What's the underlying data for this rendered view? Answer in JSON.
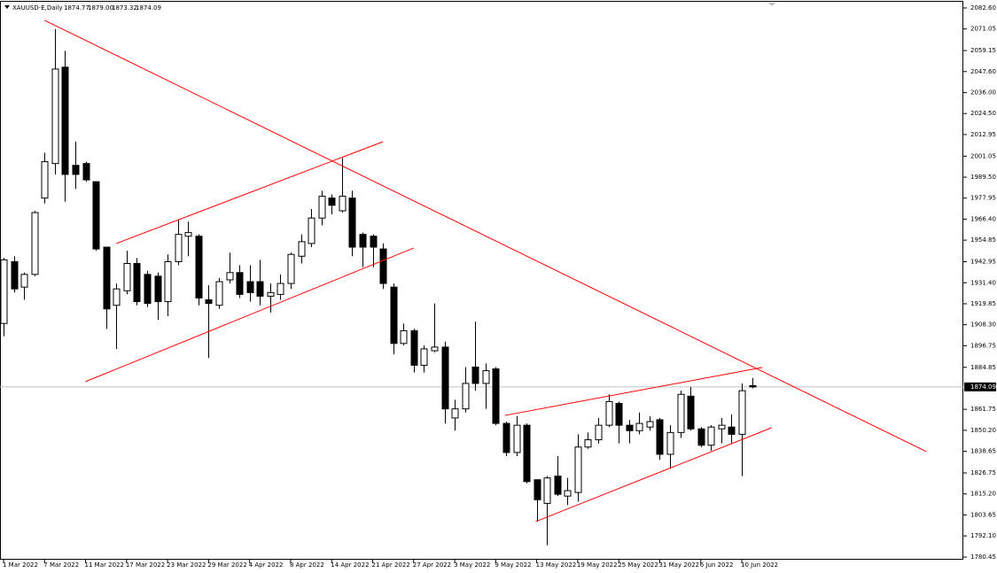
{
  "chart_data": {
    "type": "candlestick",
    "title": "XAUUSD-E,Daily",
    "ohlc_labels": [
      "1874.77",
      "1879.00",
      "1873.32",
      "1874.09"
    ],
    "categories": [
      "1 Mar 2022",
      null,
      null,
      null,
      "7 Mar 2022",
      null,
      null,
      null,
      "11 Mar 2022",
      null,
      null,
      null,
      "17 Mar 2022",
      null,
      null,
      null,
      "23 Mar 2022",
      null,
      null,
      null,
      "29 Mar 2022",
      null,
      null,
      null,
      "4 Apr 2022",
      null,
      null,
      null,
      "8 Apr 2022",
      null,
      null,
      null,
      "14 Apr 2022",
      null,
      null,
      null,
      "21 Apr 2022",
      null,
      null,
      null,
      "27 Apr 2022",
      null,
      null,
      null,
      "3 May 2022",
      null,
      null,
      null,
      "9 May 2022",
      null,
      null,
      null,
      "13 May 2022",
      null,
      null,
      null,
      "19 May 2022",
      null,
      null,
      null,
      "25 May 2022",
      null,
      null,
      null,
      "31 May 2022",
      null,
      null,
      null,
      "6 Jun 2022",
      null,
      null,
      null,
      "10 Jun 2022",
      null
    ],
    "open": [
      1909,
      1943,
      1929,
      1936,
      1978,
      1997,
      2050,
      1996,
      1997,
      1987,
      1951,
      1919,
      1927,
      1942,
      1936,
      1935,
      1921,
      1943,
      1957,
      1957,
      1922,
      1919,
      1933,
      1937,
      1932,
      1932,
      1924,
      1925,
      1931,
      1946,
      1953,
      1967,
      1978,
      1971,
      1978,
      1958,
      1957,
      1950,
      1929,
      1898,
      1905,
      1886,
      1894,
      1896,
      1857,
      1862,
      1885,
      1876,
      1884,
      1854,
      1838,
      1853,
      1823,
      1810,
      1825,
      1814,
      1816,
      1841,
      1845,
      1853,
      1865,
      1853,
      1850,
      1852,
      1856,
      1837,
      1849,
      1869,
      1851,
      1842,
      1851,
      1852,
      1848,
      1874.77
    ],
    "high": [
      1945,
      1946,
      1937,
      1971,
      2003,
      2071,
      2059,
      2009,
      1998,
      1987,
      1951,
      1931,
      1949,
      1945,
      1938,
      1937,
      1947,
      1966,
      1965,
      1958,
      1930,
      1934,
      1948,
      1941,
      1941,
      1944,
      1931,
      1936,
      1948,
      1958,
      1972,
      1982,
      1980,
      2000,
      1982,
      1959,
      1958,
      1953,
      1931,
      1909,
      1906,
      1897,
      1920,
      1899,
      1867,
      1885,
      1910,
      1887,
      1885,
      1855,
      1858,
      1854,
      1823,
      1825,
      1836,
      1824,
      1848,
      1849,
      1857,
      1870,
      1866,
      1856,
      1860,
      1858,
      1857,
      1853,
      1872,
      1874,
      1852,
      1853,
      1857,
      1859,
      1876,
      1879
    ],
    "low": [
      1902,
      1926,
      1922,
      1935,
      1975,
      1991,
      1976,
      1983,
      1987,
      1949,
      1906,
      1895,
      1925,
      1919,
      1918,
      1911,
      1913,
      1941,
      1946,
      1919,
      1890,
      1917,
      1931,
      1923,
      1921,
      1919,
      1915,
      1922,
      1928,
      1942,
      1951,
      1963,
      1969,
      1970,
      1946,
      1940,
      1940,
      1928,
      1892,
      1897,
      1882,
      1882,
      1893,
      1854,
      1850,
      1860,
      1872,
      1862,
      1853,
      1836,
      1836,
      1821,
      1800,
      1787,
      1814,
      1809,
      1811,
      1840,
      1843,
      1852,
      1843,
      1843,
      1848,
      1850,
      1834,
      1829,
      1846,
      1850,
      1841,
      1839,
      1843,
      1843,
      1825,
      1873.32
    ],
    "close": [
      1944,
      1928,
      1936,
      1970,
      1998,
      2049,
      1991,
      1991,
      1988,
      1950,
      1917,
      1928,
      1942,
      1921,
      1920,
      1921,
      1943,
      1958,
      1959,
      1923,
      1920,
      1932,
      1937,
      1925,
      1926,
      1924,
      1926,
      1931,
      1947,
      1954,
      1967,
      1979,
      1974,
      1979,
      1951,
      1951,
      1951,
      1931,
      1898,
      1905,
      1886,
      1895,
      1896,
      1862,
      1862,
      1876,
      1876,
      1883,
      1854,
      1838,
      1853,
      1822,
      1812,
      1824,
      1815,
      1817,
      1841,
      1845,
      1853,
      1866,
      1853,
      1850,
      1854,
      1855,
      1837,
      1849,
      1870,
      1851,
      1842,
      1852,
      1853,
      1848,
      1872,
      1874.09
    ],
    "up_color": "#ffffff",
    "down_color": "#000000",
    "ylim": [
      1779.0,
      2086.0
    ],
    "yticks": [
      {
        "value": 2082.6,
        "label": "2082.60"
      },
      2071.05,
      2059.15,
      {
        "value": 2047.6,
        "label": "2047.60"
      },
      {
        "value": 2036.0,
        "label": "2036.00"
      },
      {
        "value": 2024.5,
        "label": "2024.50"
      },
      2012.95,
      2001.05,
      {
        "value": 1989.5,
        "label": "1989.50"
      },
      1977.95,
      {
        "value": 1966.4,
        "label": "1966.40"
      },
      1954.85,
      1942.95,
      {
        "value": 1931.4,
        "label": "1931.40"
      },
      1919.85,
      {
        "value": 1908.3,
        "label": "1908.30"
      },
      1896.75,
      1884.85,
      1861.75,
      {
        "value": 1850.2,
        "label": "1850.20"
      },
      1838.65,
      1826.75,
      {
        "value": 1815.2,
        "label": "1815.20"
      },
      1803.65,
      {
        "value": 1792.1,
        "label": "1792.10"
      },
      1780.45
    ],
    "current_price": {
      "value": 1874.09,
      "label": "1874.09"
    },
    "trendline_color": "#ff0000",
    "trendlines": [
      {
        "x": [
          4,
          90
        ],
        "y": [
          2075.8,
          1838.5
        ]
      },
      {
        "x": [
          11,
          37
        ],
        "y": [
          1953.0,
          2009.0
        ]
      },
      {
        "x": [
          8,
          40
        ],
        "y": [
          1877.0,
          1950.5
        ]
      },
      {
        "x": [
          48.9,
          74
        ],
        "y": [
          1858.4,
          1884.8
        ]
      },
      {
        "x": [
          51.9,
          74.9
        ],
        "y": [
          1800.0,
          1851.6
        ]
      }
    ]
  }
}
